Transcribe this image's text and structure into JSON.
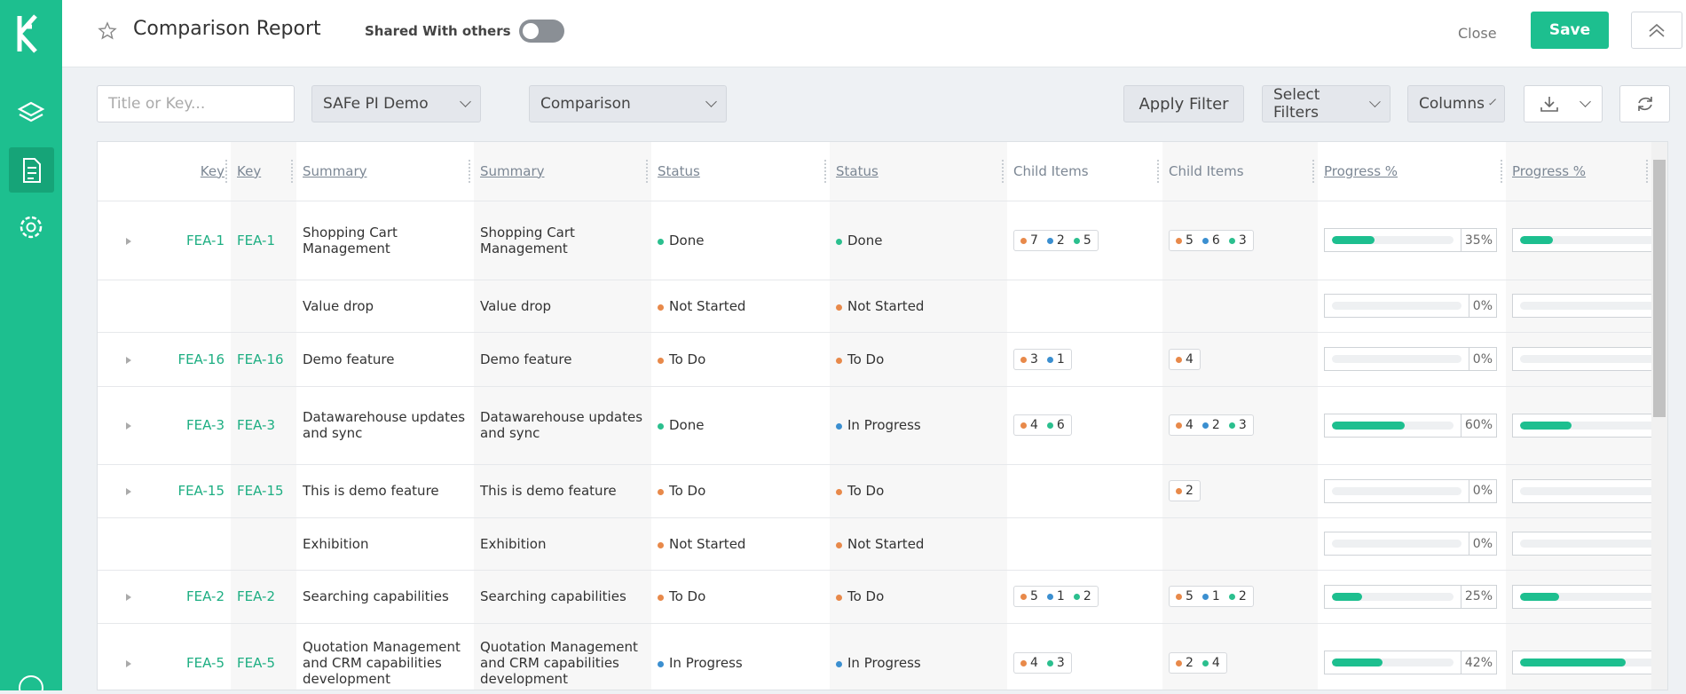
{
  "header": {
    "title": "Comparison Report",
    "shared_label": "Shared With others",
    "close": "Close",
    "save": "Save"
  },
  "filters": {
    "search_placeholder": "Title or Key...",
    "project": "SAFe PI Demo",
    "view": "Comparison",
    "apply": "Apply Filter",
    "select_filters": "Select Filters",
    "columns": "Columns"
  },
  "table": {
    "columns": [
      {
        "label": "Key",
        "sortable": true
      },
      {
        "label": "Key",
        "sortable": true
      },
      {
        "label": "Summary",
        "sortable": true
      },
      {
        "label": "Summary",
        "sortable": true
      },
      {
        "label": "Status",
        "sortable": true
      },
      {
        "label": "Status",
        "sortable": true
      },
      {
        "label": "Child Items",
        "sortable": false
      },
      {
        "label": "Child Items",
        "sortable": false
      },
      {
        "label": "Progress %",
        "sortable": true
      },
      {
        "label": "Progress %",
        "sortable": true
      }
    ],
    "rows": [
      {
        "key": "FEA-1",
        "key2": "FEA-1",
        "summary": "Shopping Cart Management",
        "summary2": "Shopping Cart Management",
        "status": {
          "text": "Done",
          "color": "#2bbf8e"
        },
        "status2": {
          "text": "Done",
          "color": "#2bbf8e"
        },
        "children": [
          {
            "count": 7,
            "color": "#e8894a"
          },
          {
            "count": 2,
            "color": "#3b8fd0"
          },
          {
            "count": 5,
            "color": "#2bbf8e"
          }
        ],
        "children2": [
          {
            "count": 5,
            "color": "#e8894a"
          },
          {
            "count": 6,
            "color": "#3b8fd0"
          },
          {
            "count": 3,
            "color": "#2bbf8e"
          }
        ],
        "progress": {
          "value": 35,
          "label": "35%"
        },
        "progress2": {
          "value": 21
        }
      },
      {
        "summary": "Value drop",
        "summary2": "Value drop",
        "status": {
          "text": "Not Started",
          "color": "#e8894a"
        },
        "status2": {
          "text": "Not Started",
          "color": "#e8894a"
        },
        "children": [],
        "children2": [],
        "progress": {
          "value": 0,
          "label": "0%"
        },
        "progress2": {
          "value": 0
        }
      },
      {
        "key": "FEA-16",
        "key2": "FEA-16",
        "summary": "Demo feature",
        "summary2": "Demo feature",
        "status": {
          "text": "To Do",
          "color": "#e8894a"
        },
        "status2": {
          "text": "To Do",
          "color": "#e8894a"
        },
        "children": [
          {
            "count": 3,
            "color": "#e8894a"
          },
          {
            "count": 1,
            "color": "#3b8fd0"
          }
        ],
        "children2": [
          {
            "count": 4,
            "color": "#e8894a"
          }
        ],
        "progress": {
          "value": 0,
          "label": "0%"
        },
        "progress2": {
          "value": 0
        }
      },
      {
        "key": "FEA-3",
        "key2": "FEA-3",
        "summary": "Datawarehouse updates and sync",
        "summary2": "Datawarehouse updates and sync",
        "status": {
          "text": "Done",
          "color": "#2bbf8e"
        },
        "status2": {
          "text": "In Progress",
          "color": "#3b8fd0"
        },
        "children": [
          {
            "count": 4,
            "color": "#e8894a"
          },
          {
            "count": 6,
            "color": "#2bbf8e"
          }
        ],
        "children2": [
          {
            "count": 4,
            "color": "#e8894a"
          },
          {
            "count": 2,
            "color": "#3b8fd0"
          },
          {
            "count": 3,
            "color": "#2bbf8e"
          }
        ],
        "progress": {
          "value": 60,
          "label": "60%"
        },
        "progress2": {
          "value": 33
        }
      },
      {
        "key": "FEA-15",
        "key2": "FEA-15",
        "summary": "This is demo feature",
        "summary2": "This is demo feature",
        "status": {
          "text": "To Do",
          "color": "#e8894a"
        },
        "status2": {
          "text": "To Do",
          "color": "#e8894a"
        },
        "children": [],
        "children2": [
          {
            "count": 2,
            "color": "#e8894a"
          }
        ],
        "progress": {
          "value": 0,
          "label": "0%"
        },
        "progress2": {
          "value": 0
        }
      },
      {
        "summary": "Exhibition",
        "summary2": "Exhibition",
        "status": {
          "text": "Not Started",
          "color": "#e8894a"
        },
        "status2": {
          "text": "Not Started",
          "color": "#e8894a"
        },
        "children": [],
        "children2": [],
        "progress": {
          "value": 0,
          "label": "0%"
        },
        "progress2": {
          "value": 0
        }
      },
      {
        "key": "FEA-2",
        "key2": "FEA-2",
        "summary": "Searching capabilities",
        "summary2": "Searching capabilities",
        "status": {
          "text": "To Do",
          "color": "#e8894a"
        },
        "status2": {
          "text": "To Do",
          "color": "#e8894a"
        },
        "children": [
          {
            "count": 5,
            "color": "#e8894a"
          },
          {
            "count": 1,
            "color": "#3b8fd0"
          },
          {
            "count": 2,
            "color": "#2bbf8e"
          }
        ],
        "children2": [
          {
            "count": 5,
            "color": "#e8894a"
          },
          {
            "count": 1,
            "color": "#3b8fd0"
          },
          {
            "count": 2,
            "color": "#2bbf8e"
          }
        ],
        "progress": {
          "value": 25,
          "label": "25%"
        },
        "progress2": {
          "value": 25
        }
      },
      {
        "key": "FEA-5",
        "key2": "FEA-5",
        "summary": "Quotation Management and CRM capabilities development",
        "summary2": "Quotation Management and CRM capabilities development",
        "status": {
          "text": "In Progress",
          "color": "#3b8fd0"
        },
        "status2": {
          "text": "In Progress",
          "color": "#3b8fd0"
        },
        "children": [
          {
            "count": 4,
            "color": "#e8894a"
          },
          {
            "count": 3,
            "color": "#2bbf8e"
          }
        ],
        "children2": [
          {
            "count": 2,
            "color": "#e8894a"
          },
          {
            "count": 4,
            "color": "#2bbf8e"
          }
        ],
        "progress": {
          "value": 42,
          "label": "42%"
        },
        "progress2": {
          "value": 67
        }
      }
    ]
  }
}
